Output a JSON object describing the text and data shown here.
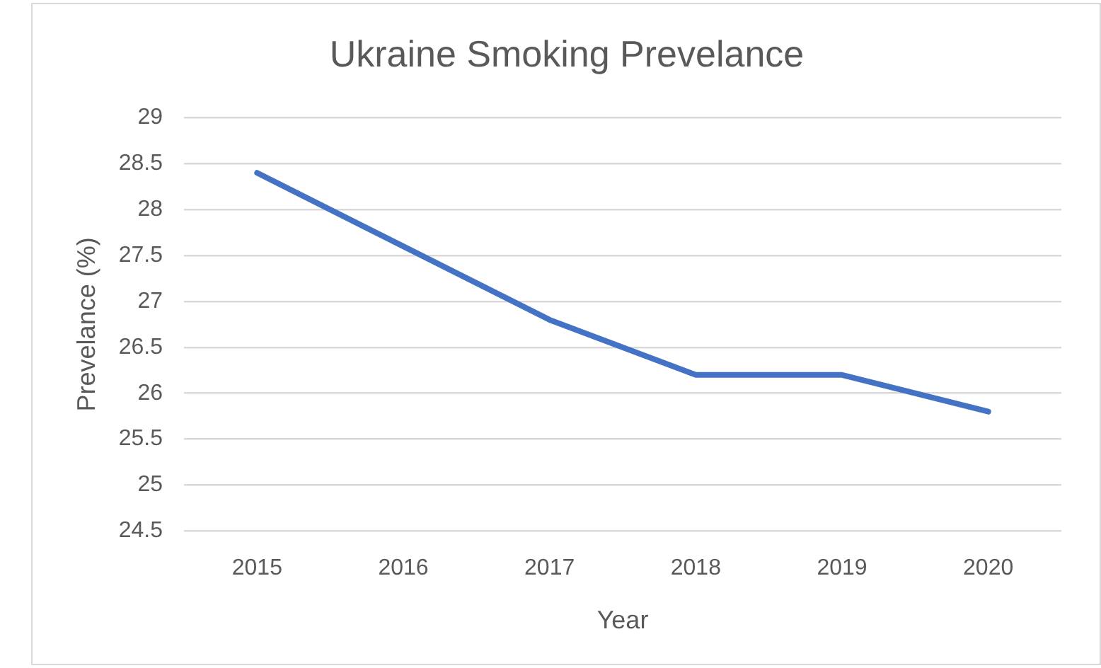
{
  "chart_data": {
    "type": "line",
    "title": "Ukraine Smoking Prevelance",
    "xlabel": "Year",
    "ylabel": "Prevelance (%)",
    "categories": [
      "2015",
      "2016",
      "2017",
      "2018",
      "2019",
      "2020"
    ],
    "series": [
      {
        "color": "#4472c4",
        "values": [
          28.4,
          27.6,
          26.8,
          26.2,
          26.2,
          25.8
        ]
      }
    ],
    "ylim": [
      24.5,
      29
    ],
    "yticks": [
      24.5,
      25,
      25.5,
      26,
      26.5,
      27,
      27.5,
      28,
      28.5,
      29
    ],
    "grid": "y"
  }
}
